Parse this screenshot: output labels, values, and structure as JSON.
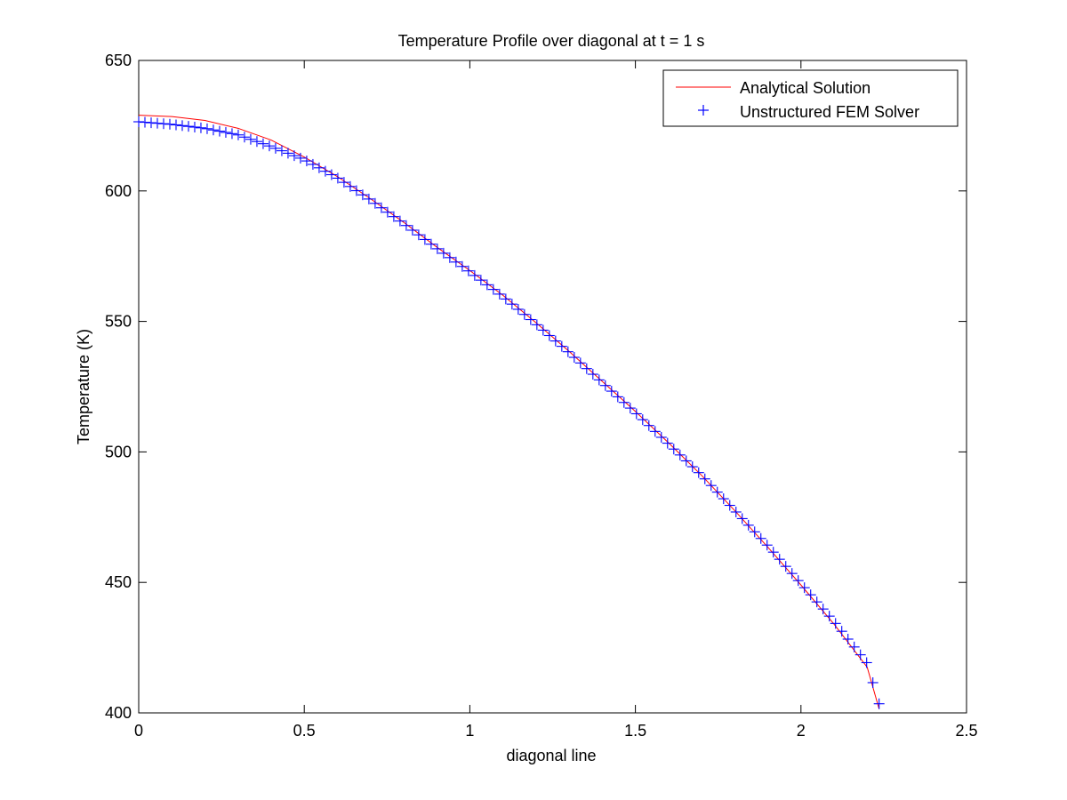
{
  "chart_data": {
    "type": "line",
    "title": "Temperature Profile over diagonal at t = 1 s",
    "xlabel": "diagonal line",
    "ylabel": "Temperature (K)",
    "xlim": [
      0,
      2.5
    ],
    "ylim": [
      400,
      650
    ],
    "xticks": [
      0,
      0.5,
      1,
      1.5,
      2,
      2.5
    ],
    "xtick_labels": [
      "0",
      "0.5",
      "1",
      "1.5",
      "2",
      "2.5"
    ],
    "yticks": [
      400,
      450,
      500,
      550,
      600,
      650
    ],
    "ytick_labels": [
      "400",
      "450",
      "500",
      "550",
      "600",
      "650"
    ],
    "grid": false,
    "legend_position": "top-right",
    "series": [
      {
        "name": "Analytical Solution",
        "style": "line",
        "color": "#ff0000",
        "x": [
          0,
          0.1,
          0.2,
          0.3,
          0.4,
          0.5,
          0.6,
          0.7,
          0.8,
          0.9,
          1.0,
          1.1,
          1.2,
          1.3,
          1.4,
          1.5,
          1.6,
          1.7,
          1.8,
          1.9,
          2.0,
          2.1,
          2.2,
          2.236
        ],
        "y": [
          629,
          628.5,
          627,
          624,
          619.5,
          613,
          605.5,
          597,
          588,
          578.5,
          569.5,
          560,
          549.5,
          538.5,
          527,
          515.5,
          503.5,
          491,
          477.5,
          463.5,
          449,
          434,
          417.5,
          401.5
        ]
      },
      {
        "name": "Unstructured FEM Solver",
        "style": "markers",
        "marker": "+",
        "color": "#0000ff",
        "x": [
          0,
          0.1,
          0.2,
          0.3,
          0.4,
          0.5,
          0.6,
          0.7,
          0.8,
          0.9,
          1.0,
          1.1,
          1.2,
          1.3,
          1.4,
          1.5,
          1.6,
          1.7,
          1.8,
          1.9,
          2.0,
          2.1,
          2.2,
          2.236
        ],
        "y": [
          626.5,
          625.5,
          624,
          621.5,
          617,
          612,
          605,
          596.5,
          587.5,
          578,
          569,
          559.5,
          549,
          538,
          526.5,
          515,
          503,
          491,
          477.5,
          464,
          449.5,
          435,
          419,
          403.5
        ],
        "point_count": 120
      }
    ]
  }
}
